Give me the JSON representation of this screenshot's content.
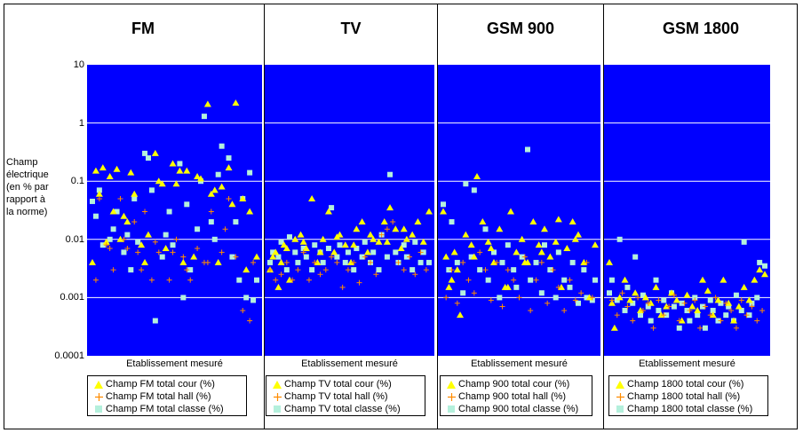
{
  "y_axis": {
    "label_lines": [
      "Champ",
      "électrique",
      "(en % par",
      "rapport à",
      "la norme)"
    ],
    "ticks": [
      "10",
      "1",
      "0.1",
      "0.01",
      "0.001",
      "0.0001"
    ]
  },
  "colors": {
    "plot_background": "#0000FF",
    "gridline": "#FFFFFF",
    "cour": "#FFFF00",
    "hall": "#FF8C00",
    "classe": "#B4F0DC"
  },
  "chart_data": [
    {
      "type": "scatter",
      "title": "FM",
      "xlabel": "Etablissement mesuré",
      "ylabel": "Champ électrique (en % par rapport à la norme)",
      "y_scale": "log",
      "ylim": [
        0.0001,
        10
      ],
      "grid": true,
      "legend_position": "bottom",
      "series": [
        {
          "name": "Champ FM total cour (%)",
          "marker": "triangle",
          "x": [
            1,
            2,
            4,
            5,
            6,
            8,
            9,
            10,
            12,
            13,
            15,
            17,
            19,
            20,
            22,
            24,
            25,
            27,
            28,
            30,
            32,
            34,
            35,
            37,
            38,
            40,
            42,
            44,
            46,
            48,
            3,
            7,
            11,
            16,
            21,
            26,
            31,
            36,
            41,
            45
          ],
          "y": [
            0.004,
            0.15,
            0.17,
            0.009,
            0.12,
            0.16,
            0.01,
            0.025,
            0.14,
            0.06,
            0.008,
            0.012,
            0.3,
            0.1,
            0.007,
            0.2,
            0.09,
            0.004,
            0.15,
            0.005,
            0.11,
            2.1,
            0.06,
            0.004,
            0.08,
            0.17,
            2.2,
            0.05,
            0.03,
            0.005,
            0.06,
            0.03,
            0.02,
            0.004,
            0.09,
            0.15,
            0.12,
            0.07,
            0.04,
            0.003
          ]
        },
        {
          "name": "Champ FM total hall  (%)",
          "marker": "plus",
          "x": [
            2,
            3,
            5,
            7,
            9,
            11,
            13,
            14,
            16,
            18,
            20,
            23,
            25,
            27,
            29,
            31,
            33,
            35,
            38,
            40,
            42,
            44,
            46,
            47,
            6,
            10,
            15,
            19,
            24,
            28,
            34,
            39
          ],
          "y": [
            0.002,
            0.05,
            0.008,
            0.003,
            0.05,
            0.007,
            0.02,
            0.006,
            0.03,
            0.002,
            0.006,
            0.002,
            0.01,
            0.005,
            0.002,
            0.007,
            0.004,
            0.03,
            0.006,
            0.05,
            0.005,
            0.0006,
            0.0004,
            0.004,
            0.007,
            0.01,
            0.003,
            0.009,
            0.006,
            0.003,
            0.004,
            0.015
          ]
        },
        {
          "name": "Champ FM total classe  (%)",
          "marker": "square",
          "x": [
            1,
            3,
            4,
            6,
            8,
            10,
            11,
            13,
            14,
            16,
            18,
            19,
            21,
            23,
            24,
            26,
            28,
            29,
            31,
            33,
            35,
            36,
            38,
            40,
            41,
            43,
            45,
            47,
            48,
            2,
            7,
            12,
            17,
            22,
            27,
            32,
            37,
            42,
            44,
            46
          ],
          "y": [
            0.045,
            0.07,
            0.008,
            0.01,
            0.03,
            0.006,
            0.012,
            0.05,
            0.009,
            0.3,
            0.07,
            0.0004,
            0.005,
            0.03,
            0.008,
            0.2,
            0.04,
            0.003,
            0.015,
            1.3,
            0.02,
            0.01,
            0.4,
            0.25,
            0.005,
            0.002,
            0.001,
            0.0009,
            0.002,
            0.025,
            0.015,
            0.003,
            0.25,
            0.012,
            0.001,
            0.1,
            0.13,
            0.02,
            0.05,
            0.14
          ]
        }
      ]
    },
    {
      "type": "scatter",
      "title": "TV",
      "xlabel": "Etablissement mesuré",
      "ylabel": "Champ électrique (en % par rapport à la norme)",
      "y_scale": "log",
      "ylim": [
        0.0001,
        10
      ],
      "grid": true,
      "legend_position": "bottom",
      "series": [
        {
          "name": "Champ TV total cour (%)",
          "marker": "triangle",
          "x": [
            1,
            2,
            3,
            4,
            5,
            6,
            8,
            10,
            12,
            14,
            16,
            18,
            20,
            22,
            24,
            26,
            28,
            30,
            32,
            34,
            36,
            38,
            40,
            42,
            44,
            46,
            48,
            50,
            52,
            54,
            56,
            58,
            7,
            13,
            19,
            25,
            31,
            37,
            43,
            49
          ],
          "y": [
            0.003,
            0.005,
            0.006,
            0.0015,
            0.004,
            0.008,
            0.002,
            0.01,
            0.012,
            0.007,
            0.05,
            0.004,
            0.01,
            0.03,
            0.006,
            0.012,
            0.008,
            0.004,
            0.015,
            0.02,
            0.006,
            0.01,
            0.009,
            0.02,
            0.035,
            0.015,
            0.007,
            0.01,
            0.012,
            0.02,
            0.009,
            0.03,
            0.007,
            0.009,
            0.006,
            0.011,
            0.008,
            0.012,
            0.009,
            0.015
          ]
        },
        {
          "name": "Champ TV total hall (%)",
          "marker": "plus",
          "x": [
            1,
            3,
            5,
            7,
            9,
            11,
            13,
            15,
            17,
            19,
            21,
            23,
            25,
            27,
            29,
            31,
            33,
            35,
            37,
            39,
            41,
            43,
            45,
            47,
            49,
            51,
            53,
            55,
            57
          ],
          "y": [
            0.003,
            0.002,
            0.0025,
            0.004,
            0.002,
            0.003,
            0.006,
            0.002,
            0.004,
            0.0025,
            0.003,
            0.005,
            0.004,
            0.0015,
            0.003,
            0.004,
            0.0018,
            0.005,
            0.004,
            0.0025,
            0.012,
            0.015,
            0.02,
            0.004,
            0.003,
            0.005,
            0.0025,
            0.006,
            0.003
          ]
        },
        {
          "name": "Champ TV total classe (%)",
          "marker": "square",
          "x": [
            1,
            2,
            4,
            5,
            7,
            8,
            10,
            11,
            13,
            14,
            16,
            17,
            19,
            20,
            22,
            23,
            25,
            26,
            28,
            29,
            31,
            32,
            34,
            35,
            37,
            38,
            40,
            41,
            43,
            44,
            46,
            47,
            49,
            50,
            52,
            53,
            55,
            56,
            58
          ],
          "y": [
            0.004,
            0.006,
            0.005,
            0.009,
            0.003,
            0.011,
            0.006,
            0.004,
            0.007,
            0.005,
            0.003,
            0.008,
            0.006,
            0.004,
            0.007,
            0.035,
            0.005,
            0.008,
            0.004,
            0.006,
            0.003,
            0.007,
            0.005,
            0.009,
            0.004,
            0.006,
            0.003,
            0.012,
            0.005,
            0.13,
            0.006,
            0.004,
            0.008,
            0.005,
            0.003,
            0.009,
            0.004,
            0.006,
            0.004
          ]
        }
      ]
    },
    {
      "type": "scatter",
      "title": "GSM 900",
      "xlabel": "Etablissement mesuré",
      "ylabel": "Champ électrique (en % par rapport à la norme)",
      "y_scale": "log",
      "ylim": [
        0.0001,
        10
      ],
      "grid": true,
      "legend_position": "bottom",
      "series": [
        {
          "name": "Champ 900 total cour (%)",
          "marker": "triangle",
          "x": [
            1,
            2,
            3,
            4,
            5,
            7,
            9,
            11,
            13,
            15,
            17,
            19,
            21,
            23,
            25,
            27,
            29,
            31,
            33,
            35,
            37,
            39,
            41,
            43,
            45,
            47,
            49,
            51,
            53,
            55,
            6,
            12,
            18,
            24,
            30,
            36,
            42,
            48
          ],
          "y": [
            0.03,
            0.005,
            0.0015,
            0.002,
            0.006,
            0.0005,
            0.012,
            0.008,
            0.12,
            0.02,
            0.009,
            0.004,
            0.015,
            0.0015,
            0.03,
            0.006,
            0.01,
            0.004,
            0.02,
            0.008,
            0.015,
            0.005,
            0.009,
            0.0015,
            0.007,
            0.02,
            0.012,
            0.004,
            0.001,
            0.008,
            0.003,
            0.005,
            0.007,
            0.0015,
            0.004,
            0.006,
            0.022,
            0.01
          ]
        },
        {
          "name": "Champ 900 total hall (%)",
          "marker": "plus",
          "x": [
            2,
            4,
            6,
            8,
            10,
            12,
            14,
            16,
            18,
            20,
            22,
            24,
            26,
            28,
            30,
            32,
            34,
            36,
            38,
            40,
            42,
            44,
            46,
            48,
            50,
            52,
            54
          ],
          "y": [
            0.001,
            0.003,
            0.0008,
            0.004,
            0.002,
            0.0012,
            0.006,
            0.003,
            0.0009,
            0.004,
            0.0007,
            0.003,
            0.002,
            0.001,
            0.005,
            0.0006,
            0.002,
            0.004,
            0.0008,
            0.003,
            0.0015,
            0.0006,
            0.002,
            0.0009,
            0.0012,
            0.004,
            0.001
          ]
        },
        {
          "name": "Champ 900 total classe (%)",
          "marker": "square",
          "x": [
            1,
            3,
            4,
            6,
            8,
            9,
            11,
            12,
            14,
            16,
            17,
            19,
            21,
            22,
            24,
            26,
            27,
            29,
            31,
            32,
            34,
            36,
            37,
            39,
            41,
            42,
            44,
            46,
            47,
            49,
            51,
            52,
            54,
            55
          ],
          "y": [
            0.04,
            0.003,
            0.02,
            0.004,
            0.0012,
            0.09,
            0.005,
            0.07,
            0.003,
            0.015,
            0.002,
            0.006,
            0.001,
            0.004,
            0.008,
            0.003,
            0.0015,
            0.005,
            0.35,
            0.002,
            0.004,
            0.0012,
            0.008,
            0.003,
            0.001,
            0.006,
            0.002,
            0.0015,
            0.004,
            0.0008,
            0.003,
            0.001,
            0.0009,
            0.002
          ]
        }
      ]
    },
    {
      "type": "scatter",
      "title": "GSM 1800",
      "xlabel": "Etablissement mesuré",
      "ylabel": "Champ électrique (en % par rapport à la norme)",
      "y_scale": "log",
      "ylim": [
        0.0001,
        10
      ],
      "grid": true,
      "legend_position": "bottom",
      "series": [
        {
          "name": "Champ 1800 total cour (%)",
          "marker": "triangle",
          "x": [
            1,
            2,
            3,
            5,
            7,
            9,
            11,
            13,
            15,
            17,
            19,
            21,
            23,
            25,
            27,
            29,
            31,
            33,
            35,
            37,
            39,
            41,
            43,
            45,
            47,
            49,
            51,
            53,
            55,
            57,
            59,
            61
          ],
          "y": [
            0.004,
            0.0008,
            0.0003,
            0.001,
            0.002,
            0.0009,
            0.0012,
            0.0006,
            0.001,
            0.0008,
            0.0015,
            0.0005,
            0.0007,
            0.0012,
            0.0009,
            0.0004,
            0.0011,
            0.0007,
            0.0006,
            0.002,
            0.0013,
            0.0005,
            0.0009,
            0.002,
            0.0008,
            0.0004,
            0.0007,
            0.0015,
            0.0009,
            0.002,
            0.003,
            0.0025
          ]
        },
        {
          "name": "Champ 1800 total hall (%)",
          "marker": "plus",
          "x": [
            2,
            4,
            6,
            8,
            10,
            12,
            14,
            16,
            18,
            20,
            22,
            24,
            26,
            28,
            30,
            32,
            34,
            36,
            38,
            40,
            42,
            44,
            46,
            48,
            50,
            52,
            54,
            56,
            58,
            60
          ],
          "y": [
            0.0009,
            0.0005,
            0.0012,
            0.0007,
            0.0004,
            0.001,
            0.0006,
            0.0008,
            0.0003,
            0.0009,
            0.0005,
            0.0007,
            0.0011,
            0.0004,
            0.0008,
            0.0006,
            0.0009,
            0.0003,
            0.0007,
            0.0005,
            0.001,
            0.0004,
            0.0008,
            0.0006,
            0.0003,
            0.0009,
            0.0005,
            0.0007,
            0.0004,
            0.0006
          ]
        },
        {
          "name": "Champ 1800 total classe (%)",
          "marker": "square",
          "x": [
            1,
            2,
            4,
            5,
            7,
            8,
            10,
            11,
            13,
            14,
            16,
            17,
            19,
            20,
            22,
            23,
            25,
            26,
            28,
            29,
            31,
            32,
            34,
            35,
            37,
            38,
            40,
            41,
            43,
            44,
            46,
            47,
            49,
            50,
            52,
            53,
            55,
            56,
            58,
            59,
            61
          ],
          "y": [
            0.0012,
            0.002,
            0.0009,
            0.01,
            0.0006,
            0.0015,
            0.0008,
            0.005,
            0.0005,
            0.0011,
            0.0007,
            0.0004,
            0.002,
            0.0006,
            0.0009,
            0.0005,
            0.0012,
            0.0007,
            0.0003,
            0.0008,
            0.0006,
            0.0004,
            0.001,
            0.0005,
            0.0007,
            0.0003,
            0.0009,
            0.0006,
            0.0004,
            0.0008,
            0.0005,
            0.0007,
            0.0004,
            0.0011,
            0.0006,
            0.009,
            0.0005,
            0.0008,
            0.001,
            0.004,
            0.0035
          ]
        }
      ]
    }
  ]
}
